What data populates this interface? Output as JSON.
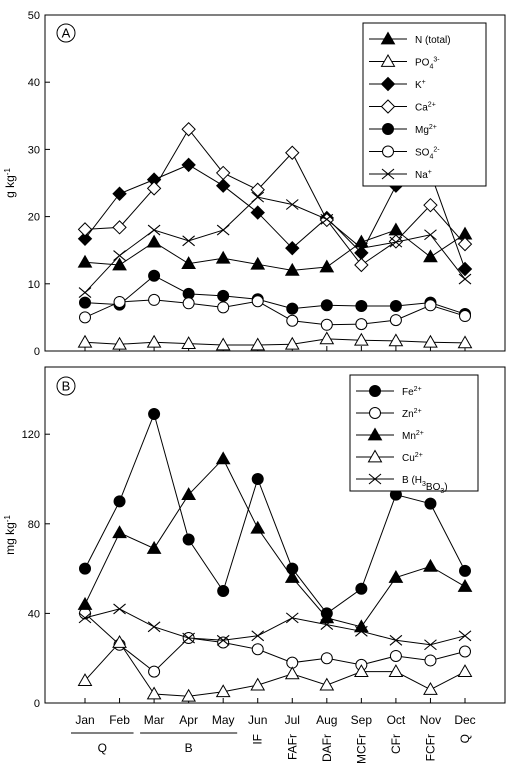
{
  "chart_data": [
    {
      "type": "line",
      "panel_label": "A",
      "ylabel": "g kg",
      "ylabel_sup": "-1",
      "ylim": [
        0,
        50
      ],
      "yticks": [
        0,
        10,
        20,
        30,
        40,
        50
      ],
      "categories": [
        "Jan",
        "Feb",
        "Mar",
        "Apr",
        "May",
        "Jun",
        "Jul",
        "Aug",
        "Sep",
        "Oct",
        "Nov",
        "Dec"
      ],
      "legend_position": "top-right",
      "series": [
        {
          "name": "N (total)",
          "label": "N (total)",
          "sup": "",
          "sub": "",
          "suffix": "",
          "marker": "triangle-filled",
          "values": [
            13.2,
            12.8,
            16.2,
            13.0,
            13.8,
            12.9,
            12.0,
            12.5,
            16.2,
            18.0,
            14.0,
            17.4
          ]
        },
        {
          "name": "PO4 3-",
          "label": "PO",
          "sub": "4",
          "sup": "3-",
          "suffix": "",
          "marker": "triangle-open",
          "values": [
            1.3,
            1.0,
            1.3,
            1.1,
            0.9,
            0.9,
            1.0,
            1.8,
            1.6,
            1.5,
            1.3,
            1.2
          ]
        },
        {
          "name": "K+",
          "label": "K",
          "sub": "",
          "sup": "+",
          "suffix": "",
          "marker": "diamond-filled",
          "values": [
            16.7,
            23.4,
            25.5,
            27.7,
            24.6,
            20.6,
            15.3,
            19.8,
            14.6,
            24.6,
            26.5,
            12.2
          ]
        },
        {
          "name": "Ca2+",
          "label": "Ca",
          "sub": "",
          "sup": "2+",
          "suffix": "",
          "marker": "diamond-open",
          "values": [
            18.1,
            18.4,
            24.2,
            33.0,
            26.5,
            24.0,
            29.5,
            19.5,
            12.8,
            16.3,
            21.7,
            15.9
          ]
        },
        {
          "name": "Mg2+",
          "label": "Mg",
          "sub": "",
          "sup": "2+",
          "suffix": "",
          "marker": "circle-filled",
          "values": [
            7.2,
            6.9,
            11.2,
            8.5,
            8.2,
            7.7,
            6.3,
            6.8,
            6.7,
            6.7,
            7.2,
            5.5
          ]
        },
        {
          "name": "SO4 2-",
          "label": "SO",
          "sub": "4",
          "sup": "2-",
          "suffix": "",
          "marker": "circle-open",
          "values": [
            5.0,
            7.3,
            7.6,
            7.1,
            6.5,
            7.4,
            4.5,
            3.9,
            4.0,
            4.6,
            6.8,
            5.2
          ]
        },
        {
          "name": "Na+",
          "label": "Na",
          "sub": "",
          "sup": "+",
          "suffix": "",
          "marker": "x",
          "values": [
            8.7,
            14.2,
            18.0,
            16.4,
            18.0,
            22.9,
            21.8,
            19.6,
            15.3,
            16.2,
            17.3,
            10.7
          ]
        }
      ]
    },
    {
      "type": "line",
      "panel_label": "B",
      "ylabel": "mg kg",
      "ylabel_sup": "-1",
      "ylim": [
        0,
        150
      ],
      "yticks": [
        0,
        40,
        80,
        120
      ],
      "categories": [
        "Jan",
        "Feb",
        "Mar",
        "Apr",
        "May",
        "Jun",
        "Jul",
        "Aug",
        "Sep",
        "Oct",
        "Nov",
        "Dec"
      ],
      "legend_position": "top-right",
      "series": [
        {
          "name": "Fe2+",
          "label": "Fe",
          "sub": "",
          "sup": "2+",
          "suffix": "",
          "marker": "circle-filled",
          "values": [
            60,
            90,
            129,
            73,
            50,
            100,
            60,
            40,
            51,
            93,
            89,
            59
          ]
        },
        {
          "name": "Zn2+",
          "label": "Zn",
          "sub": "",
          "sup": "2+",
          "suffix": "",
          "marker": "circle-open",
          "values": [
            40,
            26,
            14,
            29,
            27,
            24,
            18,
            20,
            17,
            21,
            19,
            23
          ]
        },
        {
          "name": "Mn2+",
          "label": "Mn",
          "sub": "",
          "sup": "2+",
          "suffix": "",
          "marker": "triangle-filled",
          "values": [
            44,
            76,
            69,
            93,
            109,
            78,
            56,
            38,
            34,
            56,
            61,
            52
          ]
        },
        {
          "name": "Cu2+",
          "label": "Cu",
          "sub": "",
          "sup": "2+",
          "suffix": "",
          "marker": "triangle-open",
          "values": [
            10,
            27,
            4,
            3,
            5,
            8,
            13,
            8,
            14,
            14,
            6,
            14
          ]
        },
        {
          "name": "B (H3BO3)",
          "label": "B (H",
          "sub": "3",
          "sup": "",
          "suffix": "BO",
          "sub2": "3",
          "suffix2": ")",
          "marker": "x",
          "values": [
            38,
            42,
            34,
            29,
            28,
            30,
            38,
            35,
            32,
            28,
            26,
            30
          ]
        }
      ]
    }
  ],
  "stage_labels": [
    {
      "text": "Q",
      "from": 0,
      "to": 1,
      "underline": true
    },
    {
      "text": "B",
      "from": 2,
      "to": 4,
      "underline": true
    },
    {
      "text": "IF",
      "from": 5,
      "to": 5,
      "underline": false
    },
    {
      "text": "FAFr",
      "from": 6,
      "to": 6,
      "underline": false
    },
    {
      "text": "DAFr",
      "from": 7,
      "to": 7,
      "underline": false
    },
    {
      "text": "MCFr",
      "from": 8,
      "to": 8,
      "underline": false
    },
    {
      "text": "CFr",
      "from": 9,
      "to": 9,
      "underline": false
    },
    {
      "text": "FCFr",
      "from": 10,
      "to": 10,
      "underline": false
    },
    {
      "text": "Q",
      "from": 11,
      "to": 11,
      "underline": false
    }
  ]
}
